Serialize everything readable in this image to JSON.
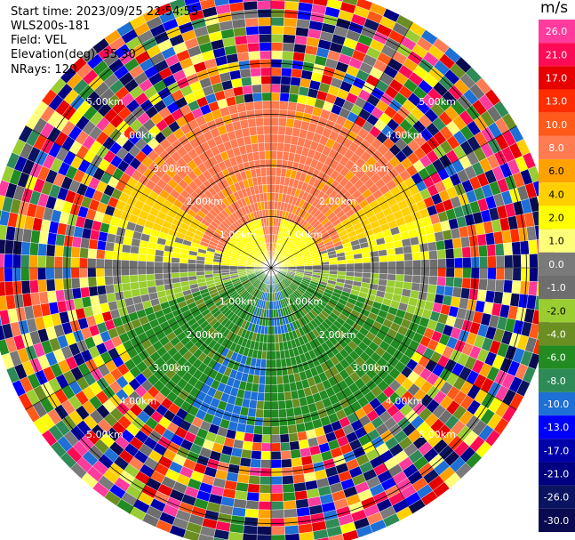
{
  "header": {
    "start_time": "Start time: 2023/09/25 22:54:55",
    "instrument": "WLS200s-181",
    "field": "Field: VEL",
    "elevation": "Elevation(deg): 35.30",
    "nrays": "NRays: 120"
  },
  "chart_data": {
    "type": "ppi",
    "field": "VEL",
    "units": "m/s",
    "nrays": 120,
    "elevation_deg": 35.3,
    "range_rings_km": [
      1.0,
      2.0,
      3.0,
      4.0,
      5.0
    ],
    "range_ring_labels": [
      "1.00km",
      "2.00km",
      "3.00km",
      "4.00km",
      "5.00km"
    ],
    "max_range_km": 5.55,
    "gates_per_ray": 34,
    "colorbar": {
      "unit_label": "m/s",
      "ticks": [
        "26.0",
        "21.0",
        "17.0",
        "13.0",
        "10.0",
        "8.0",
        "6.0",
        "4.0",
        "2.0",
        "1.0",
        "0.0",
        "-1.0",
        "-2.0",
        "-4.0",
        "-6.0",
        "-8.0",
        "-10.0",
        "-13.0",
        "-17.0",
        "-21.0",
        "-26.0",
        "-30.0"
      ],
      "colors": [
        "#ff3b9d",
        "#ff0a55",
        "#e60000",
        "#ff2d00",
        "#ff5a1a",
        "#ff7b52",
        "#ffa200",
        "#ffd000",
        "#ffff00",
        "#ffff7a",
        "#7a7a7a",
        "#6e6e6e",
        "#9acd32",
        "#6b8e23",
        "#228b22",
        "#2e8b57",
        "#1e6fd6",
        "#0000ff",
        "#0000aa",
        "#000080",
        "#0a1460",
        "#0a0a50"
      ]
    },
    "velocity_regions_description": [
      {
        "sector": "north",
        "approx_velocity_ms": 8.0
      },
      {
        "sector": "northeast-near",
        "approx_velocity_ms": 2.0
      },
      {
        "sector": "east-west-band",
        "approx_velocity_ms": 0.0
      },
      {
        "sector": "south",
        "approx_velocity_ms": -6.0
      },
      {
        "sector": "south-near",
        "approx_velocity_ms": -10.0
      },
      {
        "sector": "outer-ring",
        "approx_velocity_ms": "noise"
      }
    ]
  }
}
